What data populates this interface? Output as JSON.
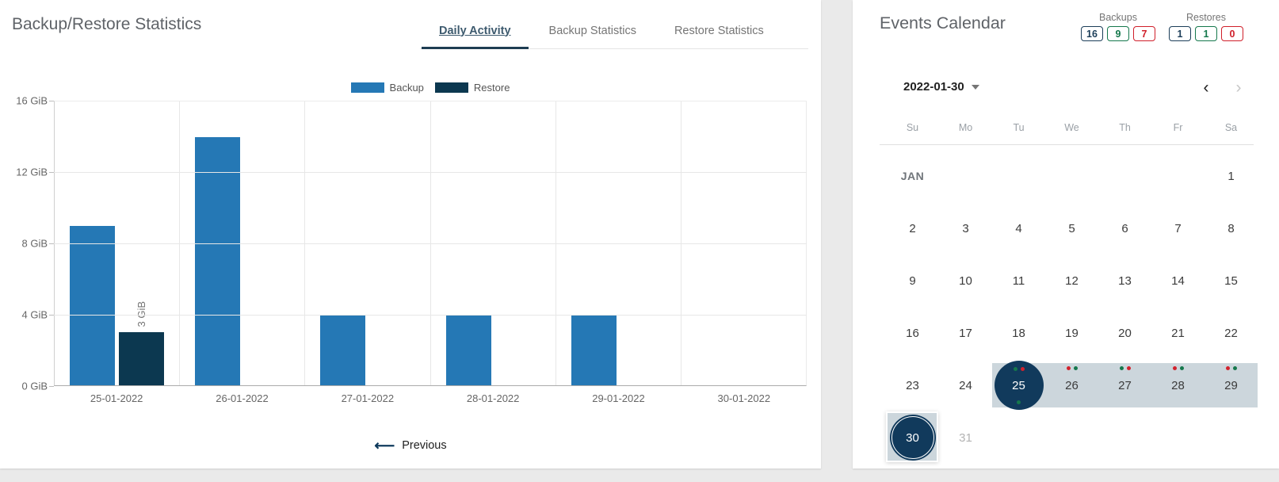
{
  "colors": {
    "backup_blue": "#2578b5",
    "restore_navy": "#0c3850",
    "circle_navy": "#113a5c",
    "band": "#ccd6dc",
    "dot_green": "#15784c",
    "dot_red": "#d2222d",
    "badge_navy": "#1c3e59",
    "badge_green": "#15784c",
    "badge_red": "#d01f2a"
  },
  "left_panel": {
    "title": "Backup/Restore Statistics",
    "tabs": [
      {
        "label": "Daily Activity",
        "active": true
      },
      {
        "label": "Backup Statistics",
        "active": false
      },
      {
        "label": "Restore Statistics",
        "active": false
      }
    ],
    "previous_label": "Previous"
  },
  "chart_data": {
    "type": "bar",
    "title": "Daily Activity",
    "xlabel": "",
    "ylabel": "",
    "unit": "GiB",
    "categories": [
      "25-01-2022",
      "26-01-2022",
      "27-01-2022",
      "28-01-2022",
      "29-01-2022",
      "30-01-2022"
    ],
    "series": [
      {
        "name": "Backup",
        "color": "#2578b5",
        "values": [
          9,
          14,
          4,
          4,
          4,
          0
        ]
      },
      {
        "name": "Restore",
        "color": "#0c3850",
        "values": [
          3,
          0,
          0,
          0,
          0,
          0
        ]
      }
    ],
    "bar_labels": [
      {
        "category": "25-01-2022",
        "series": "Restore",
        "text": "3 GiB"
      }
    ],
    "y_ticks": [
      "0 GiB",
      "4 GiB",
      "8 GiB",
      "12 GiB",
      "16 GiB"
    ],
    "ylim": [
      0,
      16
    ],
    "grid": true,
    "legend_position": "top-center"
  },
  "right_panel": {
    "title": "Events Calendar",
    "counters": [
      {
        "label": "Backups",
        "badges": [
          {
            "value": "16",
            "color": "navy"
          },
          {
            "value": "9",
            "color": "green"
          },
          {
            "value": "7",
            "color": "red"
          }
        ]
      },
      {
        "label": "Restores",
        "badges": [
          {
            "value": "1",
            "color": "navy"
          },
          {
            "value": "1",
            "color": "green"
          },
          {
            "value": "0",
            "color": "red"
          }
        ]
      }
    ],
    "date_selector": {
      "value": "2022-01-30"
    },
    "nav": {
      "prev_enabled": true,
      "next_enabled": false
    },
    "calendar": {
      "weekdays": [
        "Su",
        "Mo",
        "Tu",
        "We",
        "Th",
        "Fr",
        "Sa"
      ],
      "rows": [
        [
          {
            "text": "JAN"
          },
          null,
          null,
          null,
          null,
          null,
          {
            "day": "1"
          }
        ],
        [
          {
            "day": "2"
          },
          {
            "day": "3"
          },
          {
            "day": "4"
          },
          {
            "day": "5"
          },
          {
            "day": "6"
          },
          {
            "day": "7"
          },
          {
            "day": "8"
          }
        ],
        [
          {
            "day": "9"
          },
          {
            "day": "10"
          },
          {
            "day": "11"
          },
          {
            "day": "12"
          },
          {
            "day": "13"
          },
          {
            "day": "14"
          },
          {
            "day": "15"
          }
        ],
        [
          {
            "day": "16"
          },
          {
            "day": "17"
          },
          {
            "day": "18"
          },
          {
            "day": "19"
          },
          {
            "day": "20"
          },
          {
            "day": "21"
          },
          {
            "day": "22"
          }
        ],
        [
          {
            "day": "23"
          },
          {
            "day": "24"
          },
          {
            "day": "25",
            "circle": "filled",
            "band": true,
            "dots_top": [
              "green",
              "red"
            ],
            "dots_bottom": [
              "green"
            ]
          },
          {
            "day": "26",
            "band": true,
            "dots_top": [
              "red",
              "green"
            ]
          },
          {
            "day": "27",
            "band": true,
            "dots_top": [
              "green",
              "red"
            ]
          },
          {
            "day": "28",
            "band": true,
            "dots_top": [
              "red",
              "green"
            ]
          },
          {
            "day": "29",
            "band": true,
            "dots_top": [
              "red",
              "green"
            ]
          }
        ],
        [
          {
            "day": "30",
            "circle": "ring",
            "box": true
          },
          {
            "day": "31",
            "muted": true
          },
          null,
          null,
          null,
          null,
          null
        ]
      ]
    }
  }
}
